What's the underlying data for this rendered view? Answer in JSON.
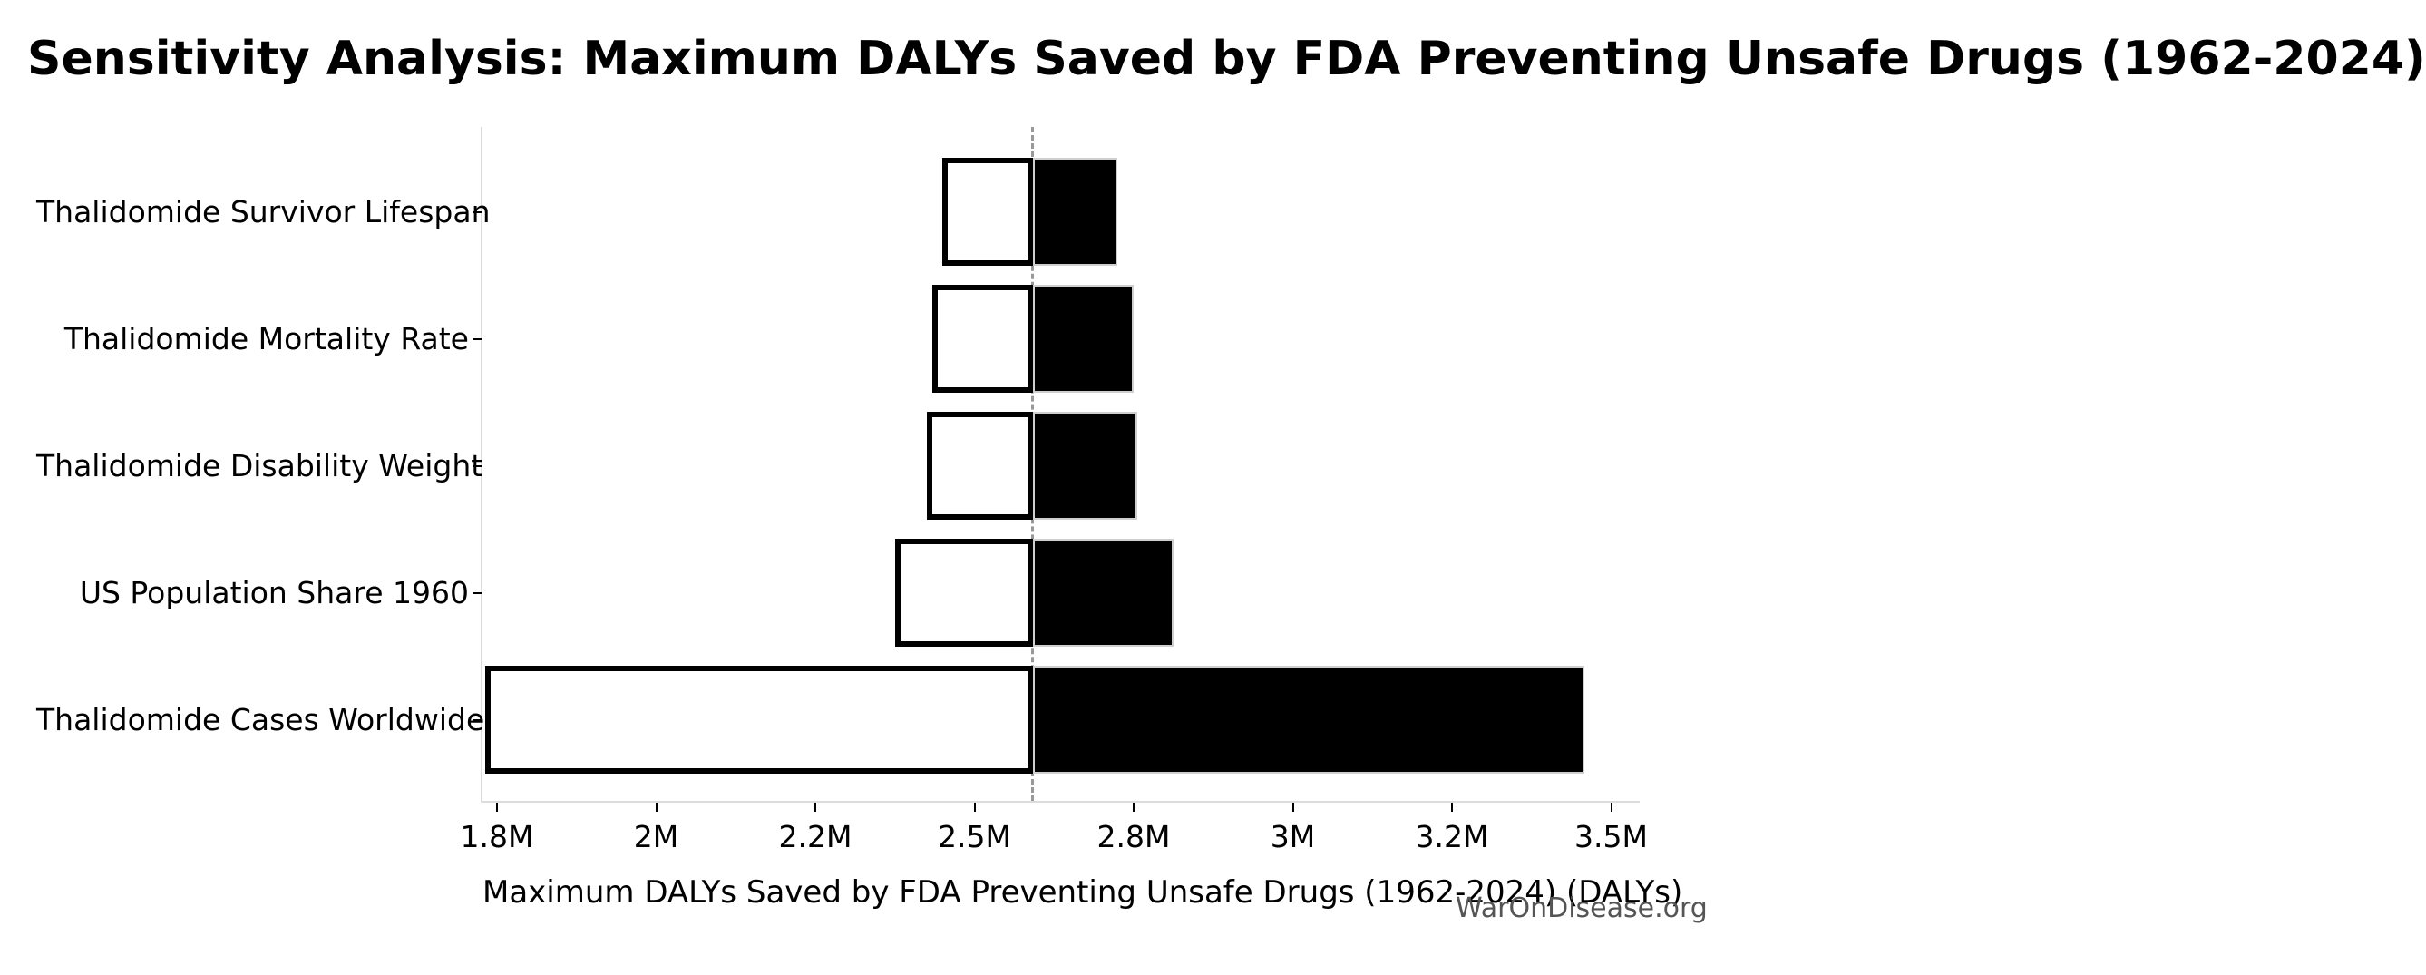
{
  "title": "Sensitivity Analysis: Maximum DALYs Saved by FDA Preventing Unsafe Drugs (1962-2024)",
  "watermark": "WarOnDisease.org",
  "chart_data": {
    "type": "bar",
    "subtype": "tornado-sensitivity",
    "orientation": "horizontal",
    "title": "Sensitivity Analysis: Maximum DALYs Saved by FDA Preventing Unsafe Drugs (1962-2024)",
    "xlabel": "Maximum DALYs Saved by FDA Preventing Unsafe Drugs (1962-2024) (DALYs)",
    "ylabel": "",
    "unit": "DALYs (millions)",
    "baseline_value_m": 2.61,
    "x_tick_labels": [
      "1.8M",
      "2M",
      "2.2M",
      "2.5M",
      "2.8M",
      "3M",
      "3.2M",
      "3.5M"
    ],
    "x_tick_values_m": [
      1.8,
      2.0,
      2.2,
      2.5,
      2.8,
      3.0,
      3.2,
      3.5
    ],
    "categories": [
      "Thalidomide Survivor Lifespan",
      "Thalidomide Mortality Rate",
      "Thalidomide Disability Weight",
      "US Population Share 1960",
      "Thalidomide Cases Worldwide"
    ],
    "bars": [
      {
        "label": "Thalidomide Survivor Lifespan",
        "low_m": 2.44,
        "high_m": 2.77
      },
      {
        "label": "Thalidomide Mortality Rate",
        "low_m": 2.42,
        "high_m": 2.8
      },
      {
        "label": "Thalidomide Disability Weight",
        "low_m": 2.41,
        "high_m": 2.805
      },
      {
        "label": "US Population Share 1960",
        "low_m": 2.35,
        "high_m": 2.85
      },
      {
        "label": "Thalidomide Cases Worldwide",
        "low_m": 1.785,
        "high_m": 3.45
      }
    ],
    "reference_line": {
      "value_m": 2.61,
      "style": "dashed"
    },
    "legend": "none",
    "grid": "off",
    "colors": {
      "low_segment_fill": "#ffffff",
      "low_segment_edge": "#000000",
      "high_segment_fill": "#000000",
      "high_segment_edge": "#cfcfcf",
      "reference_line": "#999999",
      "spine": "#dcdcdc",
      "text": "#000000",
      "watermark": "#555555"
    }
  }
}
